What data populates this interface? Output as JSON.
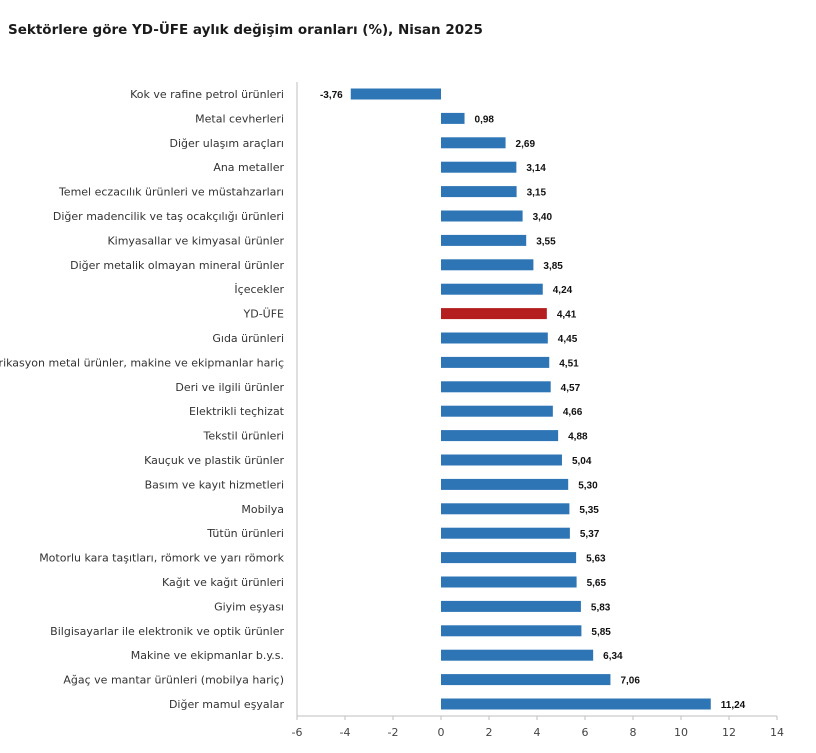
{
  "chart_data": {
    "type": "bar",
    "orientation": "horizontal",
    "title": "Sektörlere göre YD-ÜFE aylık değişim oranları (%), Nisan 2025",
    "categories": [
      "Kok ve rafine petrol ürünleri",
      "Metal cevherleri",
      "Diğer ulaşım araçları",
      "Ana metaller",
      "Temel eczacılık ürünleri ve müstahzarları",
      "Diğer madencilik ve taş ocakçılığı ürünleri",
      "Kimyasallar ve kimyasal ürünler",
      "Diğer metalik olmayan mineral ürünler",
      "İçecekler",
      "YD-ÜFE",
      "Gıda ürünleri",
      "Fabrikasyon metal ürünler, makine ve ekipmanlar hariç",
      "Deri ve ilgili ürünler",
      "Elektrikli teçhizat",
      "Tekstil ürünleri",
      "Kauçuk ve plastik ürünler",
      "Basım ve kayıt hizmetleri",
      "Mobilya",
      "Tütün ürünleri",
      "Motorlu kara taşıtları, römork ve yarı römork",
      "Kağıt ve kağıt ürünleri",
      "Giyim eşyası",
      "Bilgisayarlar ile elektronik ve optik ürünler",
      "Makine ve ekipmanlar b.y.s.",
      "Ağaç ve mantar ürünleri (mobilya hariç)",
      "Diğer mamul eşyalar"
    ],
    "values": [
      -3.76,
      0.98,
      2.69,
      3.14,
      3.15,
      3.4,
      3.55,
      3.85,
      4.24,
      4.41,
      4.45,
      4.51,
      4.57,
      4.66,
      4.88,
      5.04,
      5.3,
      5.35,
      5.37,
      5.63,
      5.65,
      5.83,
      5.85,
      6.34,
      7.06,
      11.24
    ],
    "value_labels": [
      "-3,76",
      "0,98",
      "2,69",
      "3,14",
      "3,15",
      "3,40",
      "3,55",
      "3,85",
      "4,24",
      "4,41",
      "4,45",
      "4,51",
      "4,57",
      "4,66",
      "4,88",
      "5,04",
      "5,30",
      "5,35",
      "5,37",
      "5,63",
      "5,65",
      "5,83",
      "5,85",
      "6,34",
      "7,06",
      "11,24"
    ],
    "highlight_category": "YD-ÜFE",
    "xlim": [
      -6,
      14
    ],
    "xticks": [
      -6,
      -4,
      -2,
      0,
      2,
      4,
      6,
      8,
      10,
      12,
      14
    ],
    "xtick_labels": [
      "-6",
      "-4",
      "-2",
      "0",
      "2",
      "4",
      "6",
      "8",
      "10",
      "12",
      "14"
    ],
    "grid": false,
    "legend": "none",
    "colors": {
      "bar": "#2e75b6",
      "highlight": "#b41e1e",
      "axis": "#bfbfbf"
    }
  }
}
